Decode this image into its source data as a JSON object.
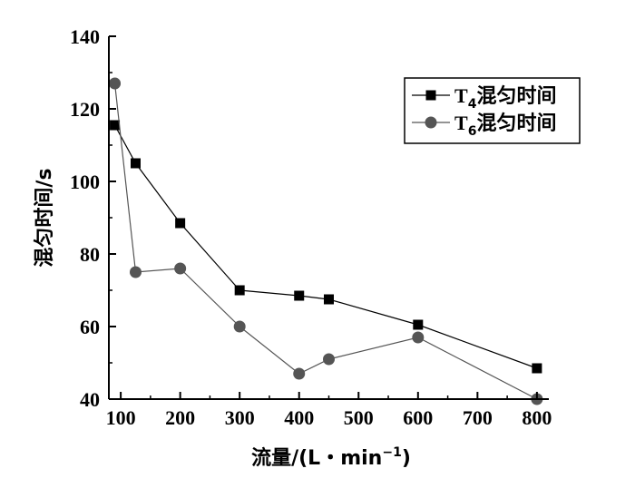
{
  "chart_data": {
    "type": "line",
    "xlabel_text": "流量/(L・min",
    "xlabel_sup": "−1",
    "xlabel_close": ")",
    "ylabel": "混匀时间/s",
    "xlim": [
      80,
      820
    ],
    "ylim": [
      40,
      140
    ],
    "xticks": [
      100,
      200,
      300,
      400,
      500,
      600,
      700,
      800
    ],
    "yticks": [
      40,
      60,
      80,
      100,
      120,
      140
    ],
    "grid": false,
    "legend_position": "top-right",
    "series": [
      {
        "name_prefix": "T",
        "name_sub": "4",
        "name_suffix": "混匀时间",
        "marker": "square",
        "color": "#000000",
        "x": [
          90,
          125,
          200,
          300,
          400,
          450,
          600,
          800
        ],
        "y": [
          115.5,
          105,
          88.5,
          70,
          68.5,
          67.5,
          60.5,
          48.5
        ]
      },
      {
        "name_prefix": "T",
        "name_sub": "6",
        "name_suffix": "混匀时间",
        "marker": "circle",
        "color": "#555555",
        "x": [
          90,
          125,
          200,
          300,
          400,
          450,
          600,
          800
        ],
        "y": [
          127,
          75,
          76,
          60,
          47,
          51,
          57,
          40
        ]
      }
    ]
  }
}
